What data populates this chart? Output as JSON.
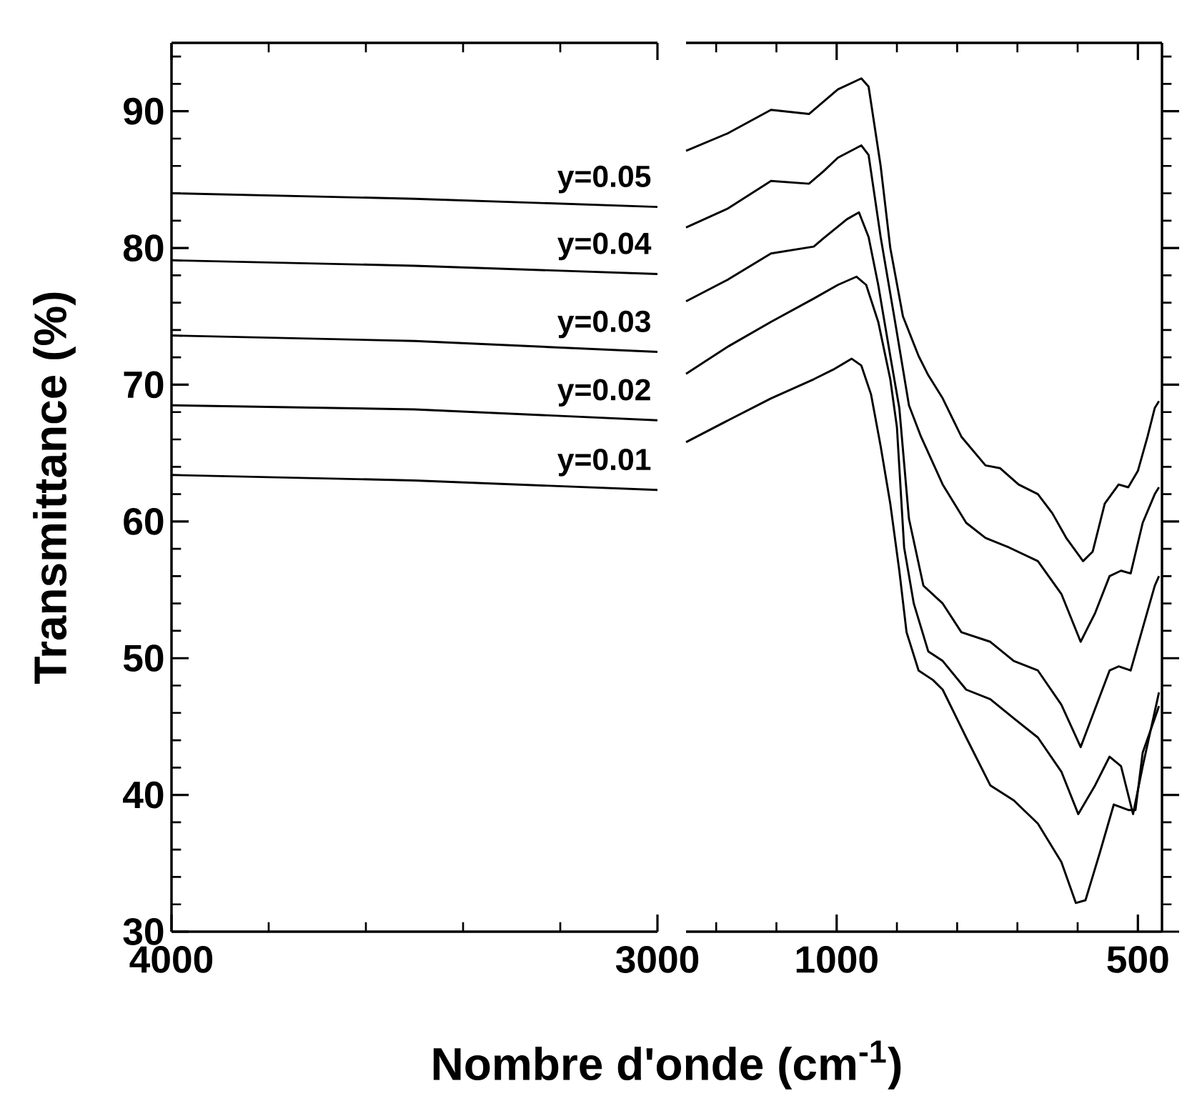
{
  "chart_data": [
    {
      "type": "line",
      "xlabel": "Nombre d'onde (cm$^{-1}$)",
      "ylabel": "Transmittance (%)",
      "marker": "none",
      "xlim": [
        4000,
        3000
      ],
      "ylim": [
        30,
        95
      ],
      "xticks": [
        4000,
        {
          "value": 3800,
          "label": null
        },
        {
          "value": 3600,
          "label": null
        },
        {
          "value": 3400,
          "label": null
        },
        {
          "value": 3200,
          "label": null
        },
        3000
      ],
      "yticks": [
        30,
        {
          "value": 32,
          "label": null
        },
        {
          "value": 34,
          "label": null
        },
        {
          "value": 36,
          "label": null
        },
        {
          "value": 38,
          "label": null
        },
        40,
        {
          "value": 42,
          "label": null
        },
        {
          "value": 44,
          "label": null
        },
        {
          "value": 46,
          "label": null
        },
        {
          "value": 48,
          "label": null
        },
        50,
        {
          "value": 52,
          "label": null
        },
        {
          "value": 54,
          "label": null
        },
        {
          "value": 56,
          "label": null
        },
        {
          "value": 58,
          "label": null
        },
        60,
        {
          "value": 62,
          "label": null
        },
        {
          "value": 64,
          "label": null
        },
        {
          "value": 66,
          "label": null
        },
        {
          "value": 68,
          "label": null
        },
        70,
        {
          "value": 72,
          "label": null
        },
        {
          "value": 74,
          "label": null
        },
        {
          "value": 76,
          "label": null
        },
        {
          "value": 78,
          "label": null
        },
        80,
        {
          "value": 82,
          "label": null
        },
        {
          "value": 84,
          "label": null
        },
        {
          "value": 86,
          "label": null
        },
        {
          "value": 88,
          "label": null
        },
        90,
        {
          "value": 92,
          "label": null
        },
        {
          "value": 94,
          "label": null
        }
      ],
      "series": [
        {
          "name": "y=0.01",
          "color": "#000000",
          "x": [
            4000,
            3500,
            3000
          ],
          "values": [
            63.4,
            63.0,
            62.3
          ]
        },
        {
          "name": "y=0.02",
          "color": "#000000",
          "x": [
            4000,
            3500,
            3000
          ],
          "values": [
            68.5,
            68.2,
            67.4
          ]
        },
        {
          "name": "y=0.03",
          "color": "#000000",
          "x": [
            4000,
            3500,
            3000
          ],
          "values": [
            73.6,
            73.2,
            72.4
          ]
        },
        {
          "name": "y=0.04",
          "color": "#000000",
          "x": [
            4000,
            3500,
            3000
          ],
          "values": [
            79.1,
            78.7,
            78.1
          ]
        },
        {
          "name": "y=0.05",
          "color": "#000000",
          "x": [
            4000,
            3500,
            3000
          ],
          "values": [
            84.0,
            83.6,
            83.0
          ]
        }
      ]
    },
    {
      "type": "line",
      "marker": "none",
      "tick_labels": "x",
      "xlim": [
        1250,
        460
      ],
      "ylim": [
        30,
        95
      ],
      "xticks": [
        {
          "value": 1200,
          "label": null
        },
        {
          "value": 1100,
          "label": null
        },
        1000,
        {
          "value": 900,
          "label": null
        },
        {
          "value": 800,
          "label": null
        },
        {
          "value": 700,
          "label": null
        },
        {
          "value": 600,
          "label": null
        },
        500
      ],
      "yticks": [
        30,
        {
          "value": 32,
          "label": null
        },
        {
          "value": 34,
          "label": null
        },
        {
          "value": 36,
          "label": null
        },
        {
          "value": 38,
          "label": null
        },
        40,
        {
          "value": 42,
          "label": null
        },
        {
          "value": 44,
          "label": null
        },
        {
          "value": 46,
          "label": null
        },
        {
          "value": 48,
          "label": null
        },
        50,
        {
          "value": 52,
          "label": null
        },
        {
          "value": 54,
          "label": null
        },
        {
          "value": 56,
          "label": null
        },
        {
          "value": 58,
          "label": null
        },
        60,
        {
          "value": 62,
          "label": null
        },
        {
          "value": 64,
          "label": null
        },
        {
          "value": 66,
          "label": null
        },
        {
          "value": 68,
          "label": null
        },
        70,
        {
          "value": 72,
          "label": null
        },
        {
          "value": 74,
          "label": null
        },
        {
          "value": 76,
          "label": null
        },
        {
          "value": 78,
          "label": null
        },
        80,
        {
          "value": 82,
          "label": null
        },
        {
          "value": 84,
          "label": null
        },
        {
          "value": 86,
          "label": null
        },
        {
          "value": 88,
          "label": null
        },
        90,
        {
          "value": 92,
          "label": null
        },
        {
          "value": 94,
          "label": null
        }
      ],
      "series": [
        {
          "color": "#000000",
          "x": [
            1250,
            1180,
            1109,
            1038,
            1006,
            975,
            959,
            943,
            927,
            911,
            896,
            884,
            864,
            840,
            824,
            785,
            745,
            706,
            666,
            627,
            603,
            587,
            563,
            540,
            516,
            504,
            492,
            472,
            465
          ],
          "values": [
            65.8,
            67.4,
            69.0,
            70.4,
            71.1,
            71.9,
            71.4,
            69.3,
            65.5,
            61.3,
            56.4,
            51.9,
            49.1,
            48.4,
            47.7,
            44.2,
            40.7,
            39.6,
            37.9,
            35.1,
            32.1,
            32.3,
            35.8,
            39.3,
            38.9,
            38.9,
            43.1,
            45.6,
            46.5
          ]
        },
        {
          "color": "#000000",
          "x": [
            1250,
            1180,
            1109,
            1038,
            998,
            967,
            951,
            931,
            911,
            900,
            888,
            872,
            848,
            824,
            785,
            745,
            706,
            666,
            627,
            599,
            571,
            547,
            528,
            508,
            492,
            472,
            465
          ],
          "values": [
            70.8,
            72.8,
            74.6,
            76.3,
            77.3,
            77.9,
            77.3,
            74.6,
            70.4,
            66.9,
            58.1,
            54.0,
            50.5,
            49.8,
            47.7,
            47.0,
            45.6,
            44.2,
            41.7,
            38.6,
            40.7,
            42.8,
            42.1,
            38.6,
            42.1,
            46.1,
            47.5
          ]
        },
        {
          "color": "#000000",
          "x": [
            1250,
            1180,
            1109,
            1038,
            1022,
            983,
            963,
            947,
            931,
            911,
            896,
            880,
            856,
            824,
            793,
            745,
            706,
            666,
            627,
            595,
            571,
            547,
            532,
            512,
            492,
            472,
            465
          ],
          "values": [
            76.1,
            77.7,
            79.6,
            80.1,
            80.7,
            82.1,
            82.6,
            80.8,
            77.3,
            72.1,
            68.3,
            60.2,
            55.3,
            54.0,
            51.9,
            51.2,
            49.8,
            49.1,
            46.6,
            43.5,
            46.3,
            49.1,
            49.4,
            49.1,
            52.2,
            55.3,
            56.0
          ]
        },
        {
          "color": "#000000",
          "x": [
            1250,
            1180,
            1109,
            1046,
            1022,
            998,
            959,
            947,
            927,
            903,
            880,
            860,
            824,
            785,
            753,
            714,
            666,
            627,
            595,
            571,
            547,
            528,
            512,
            492,
            472,
            465
          ],
          "values": [
            81.5,
            82.9,
            84.9,
            84.7,
            85.6,
            86.6,
            87.5,
            86.8,
            80.8,
            74.6,
            68.5,
            66.2,
            62.7,
            59.9,
            58.8,
            58.1,
            57.1,
            54.7,
            51.2,
            53.3,
            56.0,
            56.4,
            56.2,
            59.9,
            62.0,
            62.5
          ]
        },
        {
          "color": "#000000",
          "x": [
            1250,
            1180,
            1109,
            1046,
            1022,
            998,
            959,
            947,
            927,
            911,
            890,
            864,
            848,
            824,
            793,
            753,
            729,
            698,
            666,
            642,
            619,
            591,
            575,
            555,
            532,
            516,
            500,
            484,
            472,
            465
          ],
          "values": [
            87.1,
            88.4,
            90.1,
            89.8,
            90.7,
            91.6,
            92.4,
            91.8,
            86.0,
            80.0,
            75.0,
            72.1,
            70.7,
            69.0,
            66.2,
            64.1,
            63.9,
            62.7,
            62.0,
            60.6,
            58.8,
            57.1,
            57.8,
            61.3,
            62.7,
            62.5,
            63.7,
            66.2,
            68.3,
            68.8
          ]
        }
      ]
    }
  ]
}
